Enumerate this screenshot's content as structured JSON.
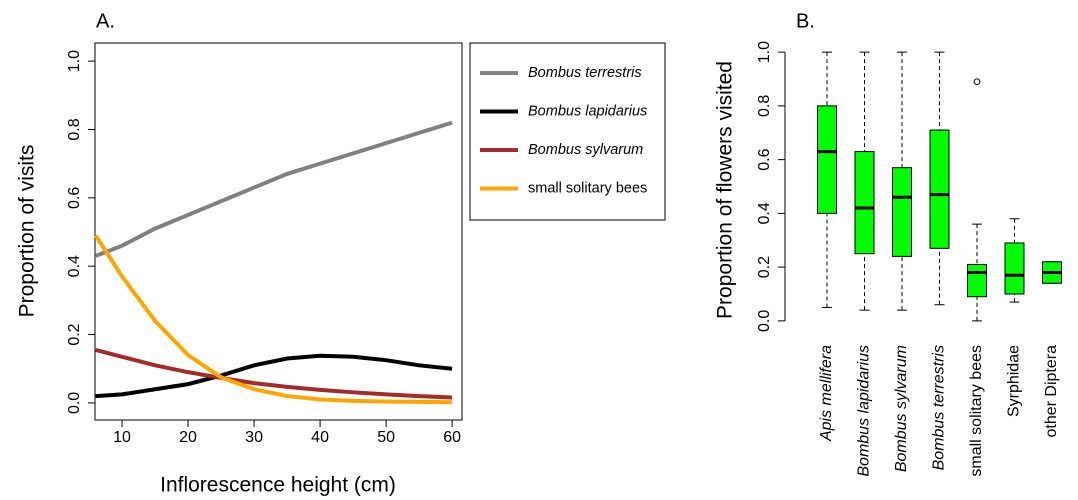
{
  "chart_data": [
    {
      "type": "line",
      "title": "A.",
      "x_label": "Inflorescence height (cm)",
      "y_label": "Proportion of visits",
      "x": [
        6,
        10,
        15,
        20,
        25,
        30,
        35,
        40,
        45,
        50,
        55,
        60
      ],
      "series": [
        {
          "name": "Bombus terrestris",
          "color": "#808080",
          "font_style": "italic",
          "values": [
            0.43,
            0.46,
            0.51,
            0.55,
            0.59,
            0.63,
            0.67,
            0.7,
            0.73,
            0.76,
            0.79,
            0.82
          ]
        },
        {
          "name": "Bombus lapidarius",
          "color": "#000000",
          "font_style": "italic",
          "values": [
            0.02,
            0.025,
            0.04,
            0.055,
            0.08,
            0.11,
            0.13,
            0.138,
            0.135,
            0.125,
            0.11,
            0.1
          ]
        },
        {
          "name": "Bombus sylvarum",
          "color": "#a52a2a",
          "font_style": "italic",
          "values": [
            0.155,
            0.135,
            0.11,
            0.09,
            0.073,
            0.058,
            0.047,
            0.038,
            0.031,
            0.025,
            0.02,
            0.016
          ]
        },
        {
          "name": "small solitary bees",
          "color": "#ffa500",
          "font_style": "normal",
          "values": [
            0.49,
            0.37,
            0.24,
            0.14,
            0.075,
            0.04,
            0.02,
            0.01,
            0.006,
            0.004,
            0.003,
            0.002
          ]
        }
      ],
      "xlim": [
        5.9,
        61.5
      ],
      "xticks": [
        10,
        20,
        30,
        40,
        50,
        60
      ],
      "ylim": [
        -0.05,
        1.053
      ],
      "yticks": [
        {
          "value": 0,
          "label": "0.0"
        },
        0.2,
        0.4,
        0.6,
        0.8,
        {
          "value": 1,
          "label": "1.0"
        }
      ],
      "legend": "right"
    },
    {
      "type": "boxplot",
      "title": "B.",
      "y_label": "Proportion of flowers visited",
      "color": "#00ff00",
      "categories": [
        "Apis mellifera",
        "Bombus lapidarius",
        "Bombus sylvarum",
        "Bombus terrestris",
        "small solitary bees",
        "Syrphidae",
        "other Diptera"
      ],
      "category_font_styles": [
        "italic",
        "italic",
        "italic",
        "italic",
        "normal",
        "normal",
        "normal"
      ],
      "boxes": [
        {
          "min": 0.05,
          "q1": 0.4,
          "median": 0.63,
          "q3": 0.8,
          "max": 1.0
        },
        {
          "min": 0.04,
          "q1": 0.25,
          "median": 0.42,
          "q3": 0.63,
          "max": 1.0
        },
        {
          "min": 0.04,
          "q1": 0.24,
          "median": 0.46,
          "q3": 0.57,
          "max": 1.0
        },
        {
          "min": 0.06,
          "q1": 0.27,
          "median": 0.47,
          "q3": 0.71,
          "max": 1.0
        },
        {
          "min": 0.0,
          "q1": 0.09,
          "median": 0.18,
          "q3": 0.21,
          "max": 0.36,
          "outliers": [
            0.89
          ]
        },
        {
          "min": 0.07,
          "q1": 0.1,
          "median": 0.17,
          "q3": 0.29,
          "max": 0.38
        },
        {
          "min": 0.14,
          "q1": 0.14,
          "median": 0.18,
          "q3": 0.22,
          "max": 0.22
        }
      ],
      "ylim": [
        -0.06,
        1.06
      ],
      "yticks": [
        {
          "value": 0,
          "label": "0.0"
        },
        0.2,
        0.4,
        0.6,
        0.8,
        {
          "value": 1,
          "label": "1.0"
        }
      ]
    }
  ]
}
